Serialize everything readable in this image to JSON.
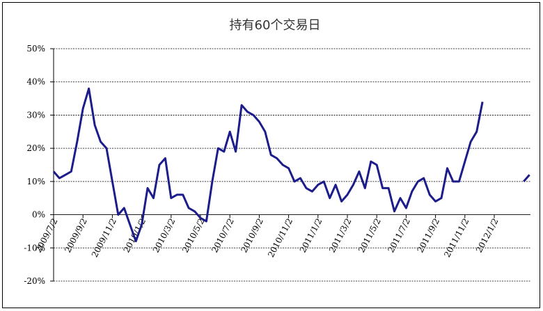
{
  "chart_data": {
    "type": "line",
    "title": "持有60个交易日",
    "categories": [
      "2009/7/2",
      null,
      null,
      null,
      null,
      "2009/9/2",
      null,
      null,
      null,
      null,
      "2009/11/2",
      null,
      null,
      null,
      null,
      "2010/1/2",
      null,
      null,
      null,
      null,
      "2010/3/2",
      null,
      null,
      null,
      null,
      "2010/5/2",
      null,
      null,
      null,
      null,
      "2010/7/2",
      null,
      null,
      null,
      null,
      "2010/9/2",
      null,
      null,
      null,
      null,
      "2010/11/2",
      null,
      null,
      null,
      null,
      "2011/1/2",
      null,
      null,
      null,
      null,
      "2011/3/2",
      null,
      null,
      null,
      null,
      "2011/5/2",
      null,
      null,
      null,
      null,
      "2011/7/2",
      null,
      null,
      null,
      null,
      "2011/9/2",
      null,
      null,
      null,
      null,
      "2011/11/2",
      null,
      null,
      null,
      null,
      "2012/1/2",
      null,
      null,
      null,
      null,
      null,
      null
    ],
    "series": [
      {
        "color": "#1c1c8a",
        "values": [
          13,
          11,
          12,
          13,
          22,
          32,
          38,
          27,
          22,
          20,
          10,
          0,
          2,
          -3,
          -8,
          -3,
          8,
          5,
          15,
          17,
          5,
          6,
          6,
          2,
          1,
          -1,
          -2,
          10,
          20,
          19,
          25,
          19,
          33,
          31,
          30,
          28,
          25,
          18,
          17,
          15,
          14,
          10,
          11,
          8,
          7,
          9,
          10,
          5,
          9,
          4,
          6,
          9,
          13,
          8,
          16,
          15,
          8,
          8,
          1,
          5,
          2,
          7,
          10,
          11,
          6,
          4,
          5,
          14,
          10,
          10,
          16,
          22,
          25,
          34,
          null,
          null,
          null,
          null,
          null,
          null,
          10,
          12
        ]
      }
    ],
    "ylim": [
      -20,
      50
    ],
    "yticks": [
      {
        "value": -20,
        "label": "-20%"
      },
      {
        "value": -10,
        "label": "-10%"
      },
      {
        "value": 0,
        "label": "0%"
      },
      {
        "value": 10,
        "label": "10%"
      },
      {
        "value": 20,
        "label": "20%"
      },
      {
        "value": 30,
        "label": "30%"
      },
      {
        "value": 40,
        "label": "40%"
      },
      {
        "value": 50,
        "label": "50%"
      }
    ],
    "grid": true
  }
}
